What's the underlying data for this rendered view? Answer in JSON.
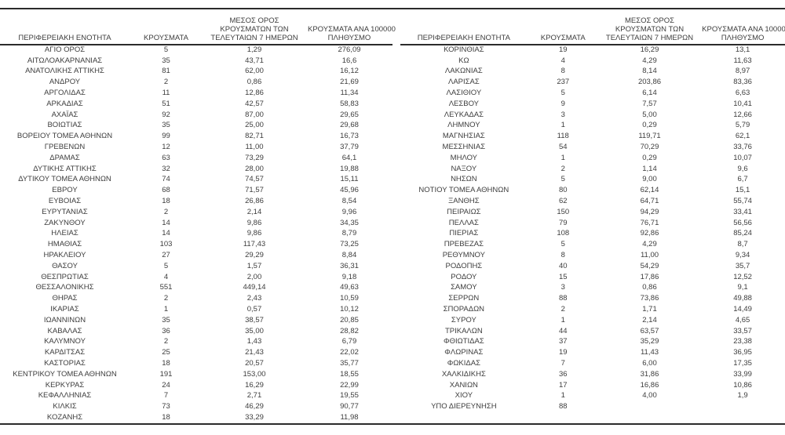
{
  "colors": {
    "text": "#3d3d3d",
    "rule": "#2b2b2b",
    "background": "#ffffff"
  },
  "columns": [
    {
      "lines": [
        "ΠΕΡΙΦΕΡΕΙΑΚΗ ΕΝΟΤΗΤΑ"
      ]
    },
    {
      "lines": [
        "ΚΡΟΥΣΜΑΤΑ"
      ]
    },
    {
      "lines": [
        "ΜΕΣΟΣ ΟΡΟΣ",
        "ΚΡΟΥΣΜΑΤΩΝ ΤΩΝ",
        "ΤΕΛΕΥΤΑΙΩΝ 7 ΗΜΕΡΩΝ"
      ]
    },
    {
      "lines": [
        "ΚΡΟΥΣΜΑΤΑ ΑΝΑ 100000",
        "ΠΛΗΘΥΣΜΟ"
      ]
    }
  ],
  "tables": [
    {
      "rows": [
        [
          "ΑΓΙΟ ΟΡΟΣ",
          "5",
          "1,29",
          "276,09"
        ],
        [
          "ΑΙΤΩΛΟΑΚΑΡΝΑΝΙΑΣ",
          "35",
          "43,71",
          "16,6"
        ],
        [
          "ΑΝΑΤΟΛΙΚΗΣ ΑΤΤΙΚΗΣ",
          "81",
          "62,00",
          "16,12"
        ],
        [
          "ΑΝΔΡΟΥ",
          "2",
          "0,86",
          "21,69"
        ],
        [
          "ΑΡΓΟΛΙΔΑΣ",
          "11",
          "12,86",
          "11,34"
        ],
        [
          "ΑΡΚΑΔΙΑΣ",
          "51",
          "42,57",
          "58,83"
        ],
        [
          "ΑΧΑΪΑΣ",
          "92",
          "87,00",
          "29,65"
        ],
        [
          "ΒΟΙΩΤΙΑΣ",
          "35",
          "25,00",
          "29,68"
        ],
        [
          "ΒΟΡΕΙΟΥ ΤΟΜΕΑ ΑΘΗΝΩΝ",
          "99",
          "82,71",
          "16,73"
        ],
        [
          "ΓΡΕΒΕΝΩΝ",
          "12",
          "11,00",
          "37,79"
        ],
        [
          "ΔΡΑΜΑΣ",
          "63",
          "73,29",
          "64,1"
        ],
        [
          "ΔΥΤΙΚΗΣ ΑΤΤΙΚΗΣ",
          "32",
          "28,00",
          "19,88"
        ],
        [
          "ΔΥΤΙΚΟΥ ΤΟΜΕΑ ΑΘΗΝΩΝ",
          "74",
          "74,57",
          "15,11"
        ],
        [
          "ΕΒΡΟΥ",
          "68",
          "71,57",
          "45,96"
        ],
        [
          "ΕΥΒΟΙΑΣ",
          "18",
          "26,86",
          "8,54"
        ],
        [
          "ΕΥΡΥΤΑΝΙΑΣ",
          "2",
          "2,14",
          "9,96"
        ],
        [
          "ΖΑΚΥΝΘΟΥ",
          "14",
          "9,86",
          "34,35"
        ],
        [
          "ΗΛΕΙΑΣ",
          "14",
          "9,86",
          "8,79"
        ],
        [
          "ΗΜΑΘΙΑΣ",
          "103",
          "117,43",
          "73,25"
        ],
        [
          "ΗΡΑΚΛΕΙΟΥ",
          "27",
          "29,29",
          "8,84"
        ],
        [
          "ΘΑΣΟΥ",
          "5",
          "1,57",
          "36,31"
        ],
        [
          "ΘΕΣΠΡΩΤΙΑΣ",
          "4",
          "2,00",
          "9,18"
        ],
        [
          "ΘΕΣΣΑΛΟΝΙΚΗΣ",
          "551",
          "449,14",
          "49,63"
        ],
        [
          "ΘΗΡΑΣ",
          "2",
          "2,43",
          "10,59"
        ],
        [
          "ΙΚΑΡΙΑΣ",
          "1",
          "0,57",
          "10,12"
        ],
        [
          "ΙΩΑΝΝΙΝΩΝ",
          "35",
          "38,57",
          "20,85"
        ],
        [
          "ΚΑΒΑΛΑΣ",
          "36",
          "35,00",
          "28,82"
        ],
        [
          "ΚΑΛΥΜΝΟΥ",
          "2",
          "1,43",
          "6,79"
        ],
        [
          "ΚΑΡΔΙΤΣΑΣ",
          "25",
          "21,43",
          "22,02"
        ],
        [
          "ΚΑΣΤΟΡΙΑΣ",
          "18",
          "20,57",
          "35,77"
        ],
        [
          "ΚΕΝΤΡΙΚΟΥ ΤΟΜΕΑ ΑΘΗΝΩΝ",
          "191",
          "153,00",
          "18,55"
        ],
        [
          "ΚΕΡΚΥΡΑΣ",
          "24",
          "16,29",
          "22,99"
        ],
        [
          "ΚΕΦΑΛΛΗΝΙΑΣ",
          "7",
          "2,71",
          "19,55"
        ],
        [
          "ΚΙΛΚΙΣ",
          "73",
          "46,29",
          "90,77"
        ],
        [
          "ΚΟΖΑΝΗΣ",
          "18",
          "33,29",
          "11,98"
        ]
      ]
    },
    {
      "rows": [
        [
          "ΚΟΡΙΝΘΙΑΣ",
          "19",
          "16,29",
          "13,1"
        ],
        [
          "ΚΩ",
          "4",
          "4,29",
          "11,63"
        ],
        [
          "ΛΑΚΩΝΙΑΣ",
          "8",
          "8,14",
          "8,97"
        ],
        [
          "ΛΑΡΙΣΑΣ",
          "237",
          "203,86",
          "83,36"
        ],
        [
          "ΛΑΣΙΘΙΟΥ",
          "5",
          "6,14",
          "6,63"
        ],
        [
          "ΛΕΣΒΟΥ",
          "9",
          "7,57",
          "10,41"
        ],
        [
          "ΛΕΥΚΑΔΑΣ",
          "3",
          "5,00",
          "12,66"
        ],
        [
          "ΛΗΜΝΟΥ",
          "1",
          "0,29",
          "5,79"
        ],
        [
          "ΜΑΓΝΗΣΙΑΣ",
          "118",
          "119,71",
          "62,1"
        ],
        [
          "ΜΕΣΣΗΝΙΑΣ",
          "54",
          "70,29",
          "33,76"
        ],
        [
          "ΜΗΛΟΥ",
          "1",
          "0,29",
          "10,07"
        ],
        [
          "ΝΑΞΟΥ",
          "2",
          "1,14",
          "9,6"
        ],
        [
          "ΝΗΣΩΝ",
          "5",
          "9,00",
          "6,7"
        ],
        [
          "ΝΟΤΙΟΥ ΤΟΜΕΑ ΑΘΗΝΩΝ",
          "80",
          "62,14",
          "15,1"
        ],
        [
          "ΞΑΝΘΗΣ",
          "62",
          "64,71",
          "55,74"
        ],
        [
          "ΠΕΙΡΑΙΩΣ",
          "150",
          "94,29",
          "33,41"
        ],
        [
          "ΠΕΛΛΑΣ",
          "79",
          "76,71",
          "56,56"
        ],
        [
          "ΠΙΕΡΙΑΣ",
          "108",
          "92,86",
          "85,24"
        ],
        [
          "ΠΡΕΒΕΖΑΣ",
          "5",
          "4,29",
          "8,7"
        ],
        [
          "ΡΕΘΥΜΝΟΥ",
          "8",
          "11,00",
          "9,34"
        ],
        [
          "ΡΟΔΟΠΗΣ",
          "40",
          "54,29",
          "35,7"
        ],
        [
          "ΡΟΔΟΥ",
          "15",
          "17,86",
          "12,52"
        ],
        [
          "ΣΑΜΟΥ",
          "3",
          "0,86",
          "9,1"
        ],
        [
          "ΣΕΡΡΩΝ",
          "88",
          "73,86",
          "49,88"
        ],
        [
          "ΣΠΟΡΑΔΩΝ",
          "2",
          "1,71",
          "14,49"
        ],
        [
          "ΣΥΡΟΥ",
          "1",
          "2,14",
          "4,65"
        ],
        [
          "ΤΡΙΚΑΛΩΝ",
          "44",
          "63,57",
          "33,57"
        ],
        [
          "ΦΘΙΩΤΙΔΑΣ",
          "37",
          "35,29",
          "23,38"
        ],
        [
          "ΦΛΩΡΙΝΑΣ",
          "19",
          "11,43",
          "36,95"
        ],
        [
          "ΦΩΚΙΔΑΣ",
          "7",
          "6,00",
          "17,35"
        ],
        [
          "ΧΑΛΚΙΔΙΚΗΣ",
          "36",
          "31,86",
          "33,99"
        ],
        [
          "ΧΑΝΙΩΝ",
          "17",
          "16,86",
          "10,86"
        ],
        [
          "ΧΙΟΥ",
          "1",
          "4,00",
          "1,9"
        ],
        [
          "ΥΠΟ ΔΙΕΡΕΥΝΗΣΗ",
          "88",
          "",
          ""
        ]
      ]
    }
  ]
}
